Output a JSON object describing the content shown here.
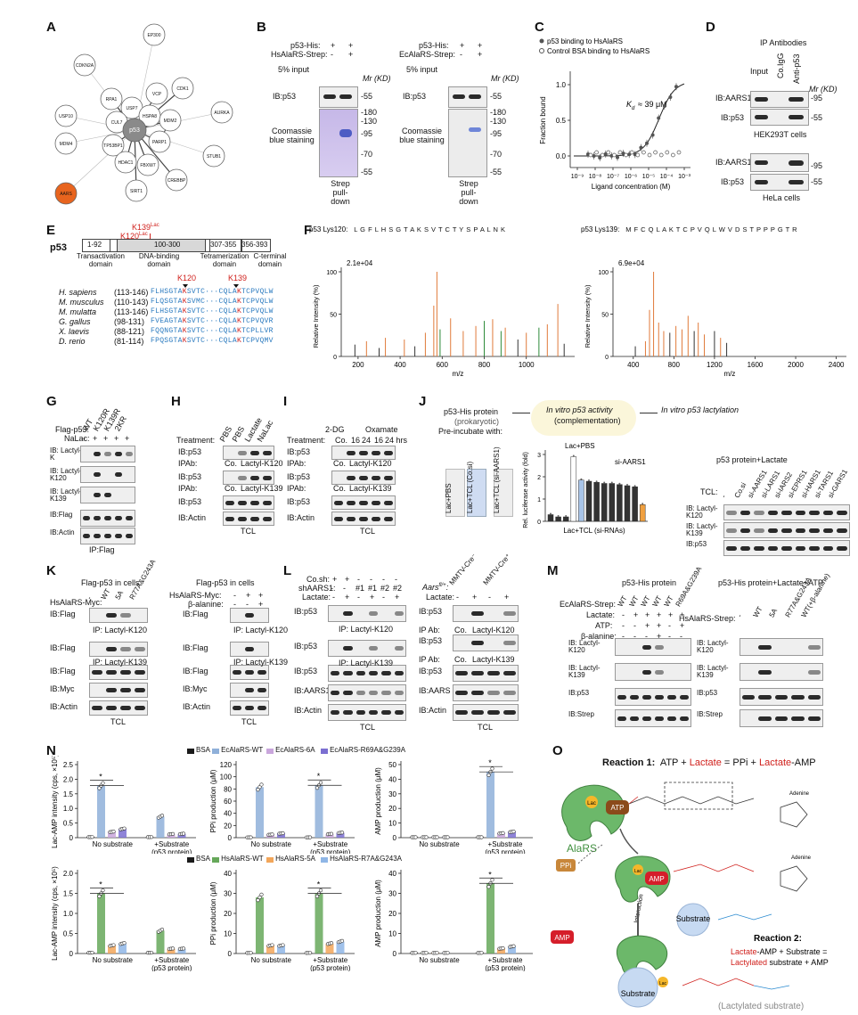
{
  "panels": [
    "A",
    "B",
    "C",
    "D",
    "E",
    "F",
    "G",
    "H",
    "I",
    "J",
    "K",
    "L",
    "M",
    "N",
    "O"
  ],
  "panel_a": {
    "nodes": [
      "EP300",
      "CDKN2A",
      "RPA1",
      "USP7",
      "VCP",
      "CDK1",
      "CUL7",
      "HSPA8",
      "USP10",
      "p53",
      "MDM2",
      "AURKA",
      "TP53BP1",
      "PARP1",
      "MDM4",
      "HDAC1",
      "FBXW7",
      "STUB1",
      "CREBBP",
      "AARS",
      "SIRT1"
    ]
  },
  "panel_b": {
    "left": {
      "row1": "p53-His:",
      "row2": "HsAlaRS-Strep:",
      "signs1": [
        "+",
        "+"
      ],
      "signs2": [
        "-",
        "+"
      ],
      "input": "5% input",
      "mr": "Mr (KD)",
      "ib": "IB:p53",
      "m55": "-55",
      "stain": "Coomassie blue staining",
      "markers": [
        "-180",
        "-130",
        "-95",
        "-70",
        "-55"
      ],
      "foot": "Strep pull-down"
    },
    "right": {
      "row1": "p53-His:",
      "row2": "EcAlaRS-Strep:",
      "signs1": [
        "+",
        "+"
      ],
      "signs2": [
        "-",
        "+"
      ],
      "input": "5% input",
      "mr": "Mr (KD)",
      "ib": "IB:p53",
      "m55": "-55",
      "stain": "Coomassie blue staining",
      "markers": [
        "-180",
        "-130",
        "-95",
        "-70",
        "-55"
      ],
      "foot": "Strep pull-down"
    }
  },
  "panel_c": {
    "legend": [
      "p53 binding to HsAlaRS",
      "Control BSA binding to HsAlaRS"
    ],
    "kd": "K",
    "kd_sub": "d",
    "kd_val": "≈ 39 μM",
    "ylabel": "Fraction bound",
    "xlabel": "Ligand concentration (M)",
    "yticks": [
      "1.0",
      "0.5",
      "0.0"
    ],
    "xticks": [
      "10⁻⁹",
      "10⁻⁸",
      "10⁻⁷",
      "10⁻⁶",
      "10⁻⁵",
      "10⁻⁴",
      "10⁻³"
    ]
  },
  "panel_d": {
    "title": "IP Antibodies",
    "cols": [
      "Input",
      "Co.IgG",
      "Anti-p53"
    ],
    "mr": "Mr (KD)",
    "rows1": [
      "IB:AARS1",
      "IB:p53"
    ],
    "marks1": [
      "-95",
      "-55"
    ],
    "cell1": "HEK293T cells",
    "rows2": [
      "IB:AARS1",
      "IB:p53"
    ],
    "marks2": [
      "-95",
      "-55"
    ],
    "cell2": "HeLa cells"
  },
  "panel_e": {
    "title": "p53",
    "k139": "K139",
    "k120": "K120",
    "lac": "Lac",
    "domains": [
      "1-92",
      "100-300",
      "307-355",
      "356-393"
    ],
    "domain_names": [
      "Transactivation domain",
      "DNA-binding domain",
      "Tetramerization domain",
      "C-terminal domain"
    ],
    "species": [
      {
        "name": "H. sapiens",
        "range": "(113-146)",
        "seq": "FLHSGTAKSVTC···CQLAKTCPVQLW"
      },
      {
        "name": "M. musculus",
        "range": "(110-143)",
        "seq": "FLQSGTAKSVMC···CQLAKTCPVQLW"
      },
      {
        "name": "M. mulatta",
        "range": "(113-146)",
        "seq": "FLHSGTAKSVTC···CQLAKTCPVQLW"
      },
      {
        "name": "G. gallus",
        "range": "(98-131)",
        "seq": "FVEAGTAKSVTC···CQLAKTCPVQVR"
      },
      {
        "name": "X. laevis",
        "range": "(88-121)",
        "seq": "FQQNGTAKSVTC···CQLAKTCPLLVR"
      },
      {
        "name": "D. rerio",
        "range": "(81-114)",
        "seq": "FPQSGTAKSVTC···CQLAKTCPVQMV"
      }
    ]
  },
  "panel_f": {
    "left": {
      "title": "p53 Lys120:",
      "seq": "L G F L H S G T A K S V T C T Y S P A L N K",
      "max": "2.1e+04",
      "xticks": [
        "200",
        "400",
        "600",
        "800",
        "1000"
      ],
      "xlabel": "m/z",
      "ylabel": "Relative Intensity (%)"
    },
    "right": {
      "title": "p53 Lys139:",
      "seq": "M F C Q L A K T C P V Q L W V D S T P P P G T R",
      "max": "6.9e+04",
      "xticks": [
        "400",
        "800",
        "1200",
        "1600",
        "2000",
        "2400"
      ],
      "xlabel": "m/z",
      "ylabel": "Relative Intensity (%)"
    }
  },
  "panel_g": {
    "row1": "Flag-p53:",
    "row2": "NaLac:",
    "cols": [
      "WT",
      "K120R",
      "K139R",
      "2KR"
    ],
    "signs": [
      "-",
      "+",
      "+",
      "+",
      "+"
    ],
    "rows": [
      "IB: Lactyl-K",
      "IB: Lactyl-K120",
      "IB: Lactyl-K139",
      "IB:Flag",
      "IB:Actin"
    ],
    "foot": "IP:Flag"
  },
  "panel_h": {
    "treatment": "Treatment:",
    "cols": [
      "PBS",
      "PBS",
      "Lactate",
      "NaLac"
    ],
    "rows": [
      "IB:p53",
      "IPAb:",
      "IB:p53",
      "IPAb:",
      "IB:p53",
      "IB:Actin"
    ],
    "ip1": [
      "Co.",
      "Lactyl-K120"
    ],
    "ip2": [
      "Co.",
      "Lactyl-K139"
    ],
    "foot": "TCL"
  },
  "panel_i": {
    "treatment": "Treatment:",
    "groups": [
      "2-DG",
      "Oxamate"
    ],
    "cols": [
      "Co.",
      "16",
      "24",
      "16",
      "24 hrs"
    ],
    "rows": [
      "IB:p53",
      "IPAb:",
      "IB:p53",
      "IPAb:",
      "IB:p53",
      "IB:Actin"
    ],
    "ip1": [
      "Co.",
      "Lactyl-K120"
    ],
    "ip2": [
      "Co.",
      "Lactyl-K139"
    ],
    "foot": "TCL"
  },
  "panel_j": {
    "protein": "p53-His protein",
    "prok": "(prokaryotic)",
    "preinc": "Pre-incubate with:",
    "box1": "In vitro p53 activity",
    "box1b": "(complementation)",
    "box2": "In vitro p53 lactylation",
    "tubes": [
      "Lac+PBS",
      "Lac+TCL (Co.si)",
      "Lac+TCL (si-AARS1)"
    ],
    "lacpbs": "Lac+PBS",
    "siaars": "si-AARS1",
    "ylabel": "Rel. luciferase activity (fold)",
    "xlab": "Lac+TCL (si-RNAs)",
    "bar_values": [
      0.3,
      0.2,
      0.2,
      2.9,
      1.85,
      1.8,
      1.75,
      1.7,
      1.7,
      1.65,
      1.6,
      1.55,
      0.75
    ],
    "yticks": [
      "3",
      "2",
      "1",
      "0"
    ],
    "blot_title": "p53 protein+Lactate",
    "tcl": "TCL:",
    "cols": [
      "-",
      "Co.si",
      "si-AARS1",
      "si-LARS1",
      "si-IARS2",
      "si-EPRS1",
      "si-HARS1",
      "si-TARS1",
      "si-GARS1"
    ],
    "rows": [
      "IB: Lactyl-K120",
      "IB: Lactyl-K139",
      "IB:p53"
    ]
  },
  "panel_k": {
    "left": {
      "title": "Flag-p53 in cells",
      "row": "HsAlaRS-Myc:",
      "cols": [
        "-",
        "WT",
        "5A",
        "R77A&G243A"
      ],
      "rows": [
        "IB:Flag",
        "IB:Flag",
        "IB:Flag",
        "IB:Myc",
        "IB:Actin"
      ],
      "ip1": "IP: Lactyl-K120",
      "ip2": "IP: Lactyl-K139",
      "foot": "TCL"
    },
    "right": {
      "title": "Flag-p53 in cells",
      "row1": "HsAlaRS-Myc:",
      "row2": "β-alanine:",
      "signs1": [
        "-",
        "+",
        "+"
      ],
      "signs2": [
        "-",
        "-",
        "+"
      ],
      "rows": [
        "IB:Flag",
        "IB:Flag",
        "IB:Flag",
        "IB:Myc",
        "IB:Actin"
      ],
      "ip1": "IP: Lactyl-K120",
      "ip2": "IP: Lactyl-K139",
      "foot": "TCL"
    }
  },
  "panel_l": {
    "left": {
      "row1": "Co.sh:",
      "row2": "shAARS1:",
      "row3": "Lactate:",
      "s1": [
        "+",
        "+",
        "-",
        "-",
        "-",
        "-"
      ],
      "s2": [
        "-",
        "-",
        "#1",
        "#1",
        "#2",
        "#2"
      ],
      "s3": [
        "-",
        "+",
        "-",
        "+",
        "-",
        "+"
      ],
      "rows": [
        "IB:p53",
        "IB:p53",
        "IB:p53",
        "IB:AARS1",
        "IB:Actin"
      ],
      "ip1": "IP: Lactyl-K120",
      "ip2": "IP: Lactyl-K139",
      "foot": "TCL"
    },
    "right": {
      "genotype": "Aars",
      "geno_sup": "fl/+",
      "cols": [
        "MMTV-Cre⁻",
        "MMTV-Cre⁺"
      ],
      "row": "Lactate:",
      "signs": [
        "-",
        "+",
        "-",
        "+"
      ],
      "rows": [
        "IB:p53",
        "IP Ab:",
        "IB:p53",
        "IP Ab:",
        "IB:p53",
        "IB:AARS",
        "IB:Actin"
      ],
      "ip1": [
        "Co.",
        "Lactyl-K120"
      ],
      "ip2": [
        "Co.",
        "Lactyl-K139"
      ],
      "foot": "TCL"
    }
  },
  "panel_m": {
    "left": {
      "title": "p53-His protein",
      "rows_top": [
        "EcAlaRS-Strep:",
        "Lactate:",
        "ATP:",
        "β-alanine:"
      ],
      "cols": [
        "WT",
        "WT",
        "WT",
        "WT",
        "WT",
        "R69A&G239A"
      ],
      "s_lac": [
        "-",
        "+",
        "+",
        "+",
        "+",
        "+"
      ],
      "s_atp": [
        "-",
        "-",
        "+",
        "+",
        "-",
        "+"
      ],
      "s_ba": [
        "-",
        "-",
        "-",
        "+",
        "-",
        "-"
      ],
      "rows": [
        "IB: Lactyl-K120",
        "IB: Lactyl-K139",
        "IB:p53",
        "IB:Strep"
      ]
    },
    "right": {
      "title": "p53-His protein+Lactate+ATP",
      "row": "HsAlaRS-Strep:",
      "cols": [
        "-",
        "WT",
        "5A",
        "R77A&G243A",
        "WT(+β-alanine)"
      ],
      "rows": [
        "IB: Lactyl-K120",
        "IB: Lactyl-K139",
        "IB:p53",
        "IB:Strep"
      ]
    }
  },
  "panel_n": {
    "legend_top": [
      "BSA",
      "EcAlaRS-WT",
      "EcAlaRS-6A",
      "EcAlaRS-R69A&G239A"
    ],
    "legend_bot": [
      "BSA",
      "HsAlaRS-WT",
      "HsAlaRS-5A",
      "HsAlaRS-R7A&G243A"
    ],
    "colors_top": [
      "#1a1a1a",
      "#8fb0d9",
      "#c9a6dc",
      "#7b6fd1"
    ],
    "colors_bot": [
      "#1a1a1a",
      "#66a85a",
      "#f2a65a",
      "#8fb6e6"
    ],
    "groups": [
      "No substrate",
      "+Substrate (p53 protein)"
    ],
    "ylabels": [
      "Lac-AMP intensity (cps, ×10⁵)",
      "PPi production (μM)",
      "AMP production (μM)"
    ],
    "chart_data": [
      {
        "type": "bar",
        "ylabel": "Lac-AMP intensity (cps, ×10⁵)",
        "ylim": [
          0,
          2.5
        ],
        "yticks": [
          "2.5",
          "2.0",
          "1.5",
          "1.0",
          "0.5",
          "0"
        ],
        "series": [
          {
            "name": "BSA",
            "values": [
              0.02,
              0.02
            ]
          },
          {
            "name": "EcAlaRS-WT",
            "values": [
              1.78,
              0.72
            ]
          },
          {
            "name": "EcAlaRS-6A",
            "values": [
              0.2,
              0.12
            ]
          },
          {
            "name": "EcAlaRS-R69A&G239A",
            "values": [
              0.3,
              0.13
            ]
          }
        ]
      },
      {
        "type": "bar",
        "ylabel": "PPi production (μM)",
        "ylim": [
          0,
          120
        ],
        "yticks": [
          "120",
          "100",
          "80",
          "60",
          "40",
          "20",
          "0"
        ],
        "series": [
          {
            "name": "BSA",
            "values": [
              0.5,
              0.5
            ]
          },
          {
            "name": "EcAlaRS-WT",
            "values": [
              83,
              86
            ]
          },
          {
            "name": "EcAlaRS-6A",
            "values": [
              5,
              6
            ]
          },
          {
            "name": "EcAlaRS-R69A&G239A",
            "values": [
              7,
              8
            ]
          }
        ]
      },
      {
        "type": "bar",
        "ylabel": "AMP production (μM)",
        "ylim": [
          0,
          50
        ],
        "yticks": [
          "50",
          "40",
          "30",
          "20",
          "10",
          "0"
        ],
        "series": [
          {
            "name": "BSA",
            "values": [
              0.3,
              0.3
            ]
          },
          {
            "name": "EcAlaRS-WT",
            "values": [
              0.3,
              45
            ]
          },
          {
            "name": "EcAlaRS-6A",
            "values": [
              0.3,
              3
            ]
          },
          {
            "name": "EcAlaRS-R69A&G239A",
            "values": [
              0.3,
              4
            ]
          }
        ]
      },
      {
        "type": "bar",
        "ylabel": "Lac-AMP intensity (cps, ×10⁵)",
        "ylim": [
          0,
          2.0
        ],
        "yticks": [
          "2.0",
          "1.5",
          "1.0",
          "0.5",
          "0"
        ],
        "series": [
          {
            "name": "BSA",
            "values": [
              0.02,
              0.02
            ]
          },
          {
            "name": "HsAlaRS-WT",
            "values": [
              1.5,
              0.57
            ]
          },
          {
            "name": "HsAlaRS-5A",
            "values": [
              0.2,
              0.12
            ]
          },
          {
            "name": "HsAlaRS-R7A&G243A",
            "values": [
              0.25,
              0.12
            ]
          }
        ]
      },
      {
        "type": "bar",
        "ylabel": "PPi production (μM)",
        "ylim": [
          0,
          40
        ],
        "yticks": [
          "40",
          "30",
          "20",
          "10",
          "0"
        ],
        "series": [
          {
            "name": "BSA",
            "values": [
              0.3,
              0.3
            ]
          },
          {
            "name": "HsAlaRS-WT",
            "values": [
              28,
              30
            ]
          },
          {
            "name": "HsAlaRS-5A",
            "values": [
              4,
              5
            ]
          },
          {
            "name": "HsAlaRS-R7A&G243A",
            "values": [
              4,
              6
            ]
          }
        ]
      },
      {
        "type": "bar",
        "ylabel": "AMP production (μM)",
        "ylim": [
          0,
          40
        ],
        "yticks": [
          "40",
          "30",
          "20",
          "10",
          "0"
        ],
        "series": [
          {
            "name": "BSA",
            "values": [
              0.3,
              0.3
            ]
          },
          {
            "name": "HsAlaRS-WT",
            "values": [
              0.3,
              35
            ]
          },
          {
            "name": "HsAlaRS-5A",
            "values": [
              0.3,
              2.5
            ]
          },
          {
            "name": "HsAlaRS-R7A&G243A",
            "values": [
              0.3,
              3.5
            ]
          }
        ]
      }
    ]
  },
  "panel_o": {
    "r1_label": "Reaction 1:",
    "r1_parts": [
      "ATP + ",
      "Lactate",
      " = PPi + ",
      "Lactate",
      "-AMP"
    ],
    "alars": "AlaRS",
    "lac": "Lac",
    "atp": "ATP",
    "amp": "AMP",
    "ppi": "PPi",
    "substrate": "Substrate",
    "interaction": "Interaction",
    "r2_label": "Reaction 2:",
    "r2_line1": [
      "Lactate",
      "-AMP + Substrate ="
    ],
    "r2_line2": [
      "Lactylated",
      " substrate + AMP"
    ],
    "adenine": "Adenine",
    "lactylated": "(Lactylated substrate)"
  },
  "colors": {
    "red": "#d0201c",
    "orange": "#e8641e",
    "green": "#5aa85a",
    "blue": "#5b8fd0"
  }
}
